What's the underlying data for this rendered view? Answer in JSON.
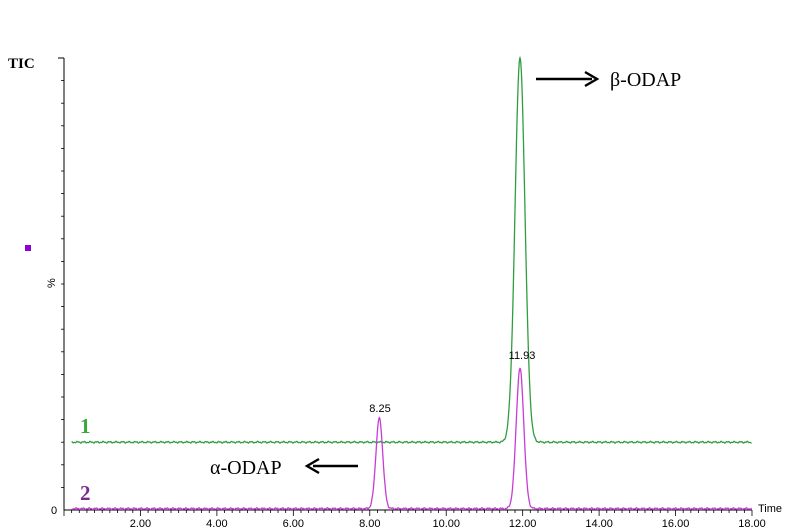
{
  "chart_data": {
    "type": "line",
    "title": "",
    "ylabel_top": "TIC",
    "ylabel": "%",
    "y_zero_label": "0",
    "xlabel": "Time",
    "xlim": [
      0,
      18
    ],
    "x_ticks": [
      "2.00",
      "4.00",
      "6.00",
      "8.00",
      "10.00",
      "12.00",
      "14.00",
      "16.00",
      "18.00"
    ],
    "series": [
      {
        "name": "1",
        "color": "#2e9e3e",
        "label_color": "#3aa83a",
        "baseline": 15,
        "peaks": [
          {
            "x": 11.93,
            "height": 85,
            "width": 0.13
          }
        ]
      },
      {
        "name": "2",
        "color": "#c83cd6",
        "label_color": "#7a2b8e",
        "baseline": 0.3,
        "peaks": [
          {
            "x": 8.25,
            "height": 20,
            "width": 0.09
          },
          {
            "x": 11.93,
            "height": 31,
            "width": 0.1
          }
        ]
      }
    ],
    "peak_labels": [
      "8.25",
      "11.93"
    ],
    "annotations": {
      "beta": "β-ODAP",
      "alpha": "α-ODAP"
    },
    "marker_color": "#8b00d6"
  }
}
